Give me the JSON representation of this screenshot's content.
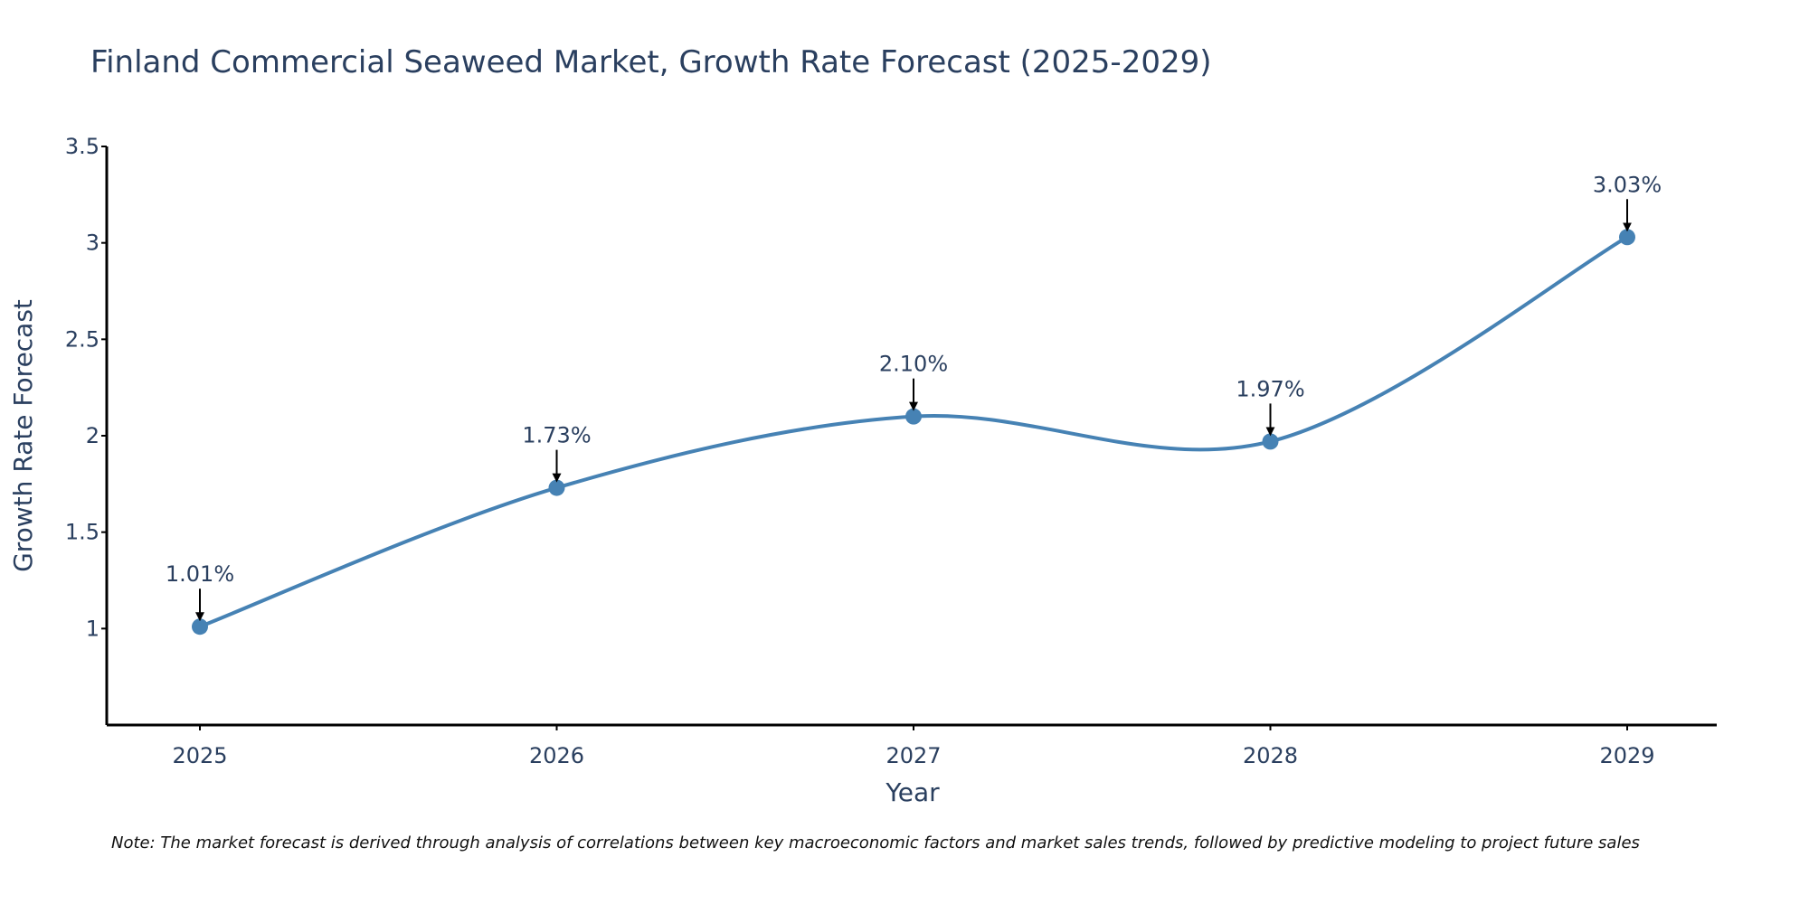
{
  "chart_data": {
    "type": "line",
    "title": "Finland Commercial Seaweed Market, Growth Rate Forecast (2025-2029)",
    "xlabel": "Year",
    "ylabel": "Growth Rate Forecast",
    "categories": [
      "2025",
      "2026",
      "2027",
      "2028",
      "2029"
    ],
    "series": [
      {
        "name": "Growth Rate Forecast",
        "values": [
          1.01,
          1.73,
          2.1,
          1.97,
          3.03
        ],
        "labels": [
          "1.01%",
          "1.73%",
          "2.10%",
          "1.97%",
          "3.03%"
        ]
      }
    ],
    "ylim": [
      0.5,
      3.5
    ],
    "yticks": [
      1,
      1.5,
      2,
      2.5,
      3,
      3.5
    ],
    "ytick_labels": [
      "1",
      "1.5",
      "2",
      "2.5",
      "3",
      "3.5"
    ],
    "line_shape": "spline",
    "grid": false,
    "line_color": "#4682b4",
    "marker_color": "#4682b4",
    "annotation_arrow_color": "#000000"
  },
  "note": "Note: The market forecast is derived through analysis of correlations between key macroeconomic factors and market sales trends, followed by predictive modeling to project future sales"
}
